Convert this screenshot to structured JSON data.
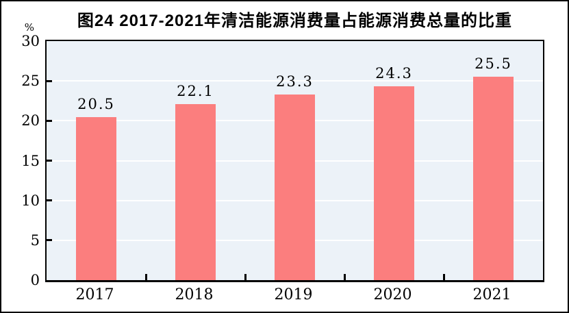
{
  "title": "图24  2017-2021年清洁能源消费量占能源消费总量的比重",
  "y_unit": "%",
  "chart_data": {
    "type": "bar",
    "title": "图24  2017-2021年清洁能源消费量占能源消费总量的比重",
    "categories": [
      "2017",
      "2018",
      "2019",
      "2020",
      "2021"
    ],
    "values": [
      20.5,
      22.1,
      23.3,
      24.3,
      25.5
    ],
    "value_labels": [
      "20.5",
      "22.1",
      "23.3",
      "24.3",
      "25.5"
    ],
    "xlabel": "",
    "ylabel": "%",
    "ylim": [
      0,
      30
    ],
    "yticks": [
      0,
      5,
      10,
      15,
      20,
      25,
      30
    ],
    "grid": "horizontal gridlines at every 5 units, white on light-blue plot background",
    "legend": "none",
    "colors": {
      "bar": "#fb7e7e",
      "plot_bg": "#ecf2f8",
      "grid": "#ffffff",
      "axis": "#000000",
      "text": "#000000",
      "page_bg": "#ffffff"
    }
  }
}
